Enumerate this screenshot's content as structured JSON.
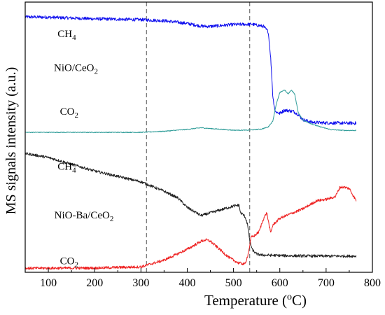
{
  "chart_data": {
    "type": "line",
    "title": "",
    "xlabel": "Temperature (",
    "xlabel_sup": "o",
    "xlabel_unit": "C)",
    "ylabel": "MS signals intensity (a.u.)",
    "xlim": [
      50,
      800
    ],
    "ylim": [
      0,
      100
    ],
    "x_ticks": [
      100,
      200,
      300,
      400,
      500,
      600,
      700,
      800
    ],
    "grid": false,
    "legend": "none",
    "y_ticks_labeled": false,
    "reference_lines": [
      {
        "x": 312,
        "style": "dashed",
        "color": "#555555"
      },
      {
        "x": 535,
        "style": "dashed",
        "color": "#555555"
      }
    ],
    "annotations": [
      {
        "id": "ch4-top",
        "text": "CH",
        "sub": "4",
        "x": 120,
        "y": 87
      },
      {
        "id": "nio-ceo2",
        "text": "NiO/CeO",
        "sub": "2",
        "x": 112,
        "y": 74.5
      },
      {
        "id": "co2-top",
        "text": "CO",
        "sub": "2",
        "x": 125,
        "y": 58.3
      },
      {
        "id": "ch4-bottom",
        "text": "CH",
        "sub": "4",
        "x": 120,
        "y": 38
      },
      {
        "id": "nio-ba-ceo2",
        "text": "NiO-Ba/CeO",
        "sub": "2",
        "x": 113,
        "y": 20
      },
      {
        "id": "co2-bottom",
        "text": "CO",
        "sub": "2",
        "x": 125,
        "y": 3
      }
    ],
    "series": [
      {
        "color": "#1010ee",
        "noise": 0.6,
        "x": [
          50,
          100,
          200,
          300,
          350,
          400,
          430,
          450,
          500,
          540,
          565,
          575,
          580,
          585,
          590,
          600,
          610,
          620,
          630,
          640,
          650,
          670,
          700,
          740,
          765
        ],
        "y": [
          94.5,
          94.4,
          93.8,
          93.5,
          93.1,
          92.1,
          91.1,
          91.0,
          91.7,
          91.8,
          91.0,
          89.0,
          80.0,
          65.0,
          59.5,
          58.8,
          60.0,
          59.8,
          59.5,
          58.3,
          56.5,
          55.5,
          55.3,
          55.2,
          55.2
        ]
      },
      {
        "color": "#2e9c98",
        "noise": 0.15,
        "x": [
          50,
          300,
          350,
          400,
          430,
          450,
          500,
          530,
          560,
          575,
          585,
          592,
          600,
          610,
          618,
          625,
          632,
          640,
          650,
          660,
          680,
          710,
          740,
          765
        ],
        "y": [
          51.8,
          51.8,
          52.2,
          52.9,
          53.5,
          53.2,
          52.6,
          52.6,
          53.0,
          53.8,
          56.0,
          62.0,
          66.5,
          67.5,
          66.0,
          67.5,
          66.0,
          59.0,
          56.3,
          55.5,
          54.2,
          52.8,
          52.5,
          52.5
        ]
      },
      {
        "color": "#222222",
        "noise": 0.5,
        "x": [
          50,
          100,
          150,
          200,
          250,
          300,
          350,
          380,
          400,
          420,
          430,
          450,
          480,
          500,
          510,
          512,
          515,
          520,
          525,
          530,
          535,
          540,
          545,
          550,
          560,
          580,
          620,
          700,
          765
        ],
        "y": [
          44.0,
          42.5,
          40.0,
          37.5,
          35.5,
          33.5,
          30.0,
          27.5,
          24.0,
          22.0,
          21.0,
          22.0,
          23.5,
          24.5,
          24.8,
          25.0,
          22.0,
          21.5,
          20.5,
          18.0,
          12.0,
          8.5,
          7.5,
          6.8,
          6.4,
          6.3,
          6.1,
          6.0,
          6.0
        ]
      },
      {
        "color": "#ee2020",
        "noise": 0.5,
        "x": [
          50,
          200,
          300,
          350,
          400,
          430,
          440,
          450,
          470,
          490,
          510,
          525,
          532,
          538,
          545,
          555,
          565,
          572,
          580,
          585,
          600,
          650,
          680,
          700,
          720,
          730,
          740,
          750,
          765
        ],
        "y": [
          1.5,
          1.6,
          2.0,
          4.5,
          8.5,
          11.5,
          12.0,
          11.5,
          8.5,
          5.5,
          3.5,
          3.0,
          7.0,
          13.0,
          13.5,
          15.0,
          20.0,
          22.0,
          14.5,
          17.5,
          20.0,
          23.5,
          26.5,
          27.0,
          28.0,
          31.5,
          31.5,
          31.0,
          26.5
        ]
      }
    ]
  }
}
